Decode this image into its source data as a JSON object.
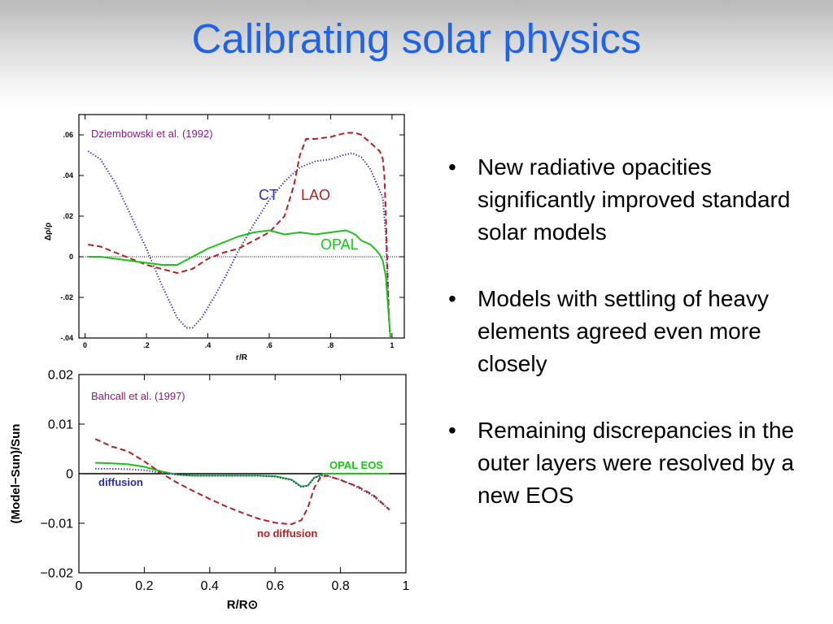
{
  "slide": {
    "title": "Calibrating solar physics",
    "bullets": [
      "New radiative opacities significantly improved standard solar models",
      "Models with settling of heavy elements agreed even more closely",
      "Remaining discrepancies in the outer layers were resolved by a new EOS"
    ],
    "bullet_glyph": "•"
  },
  "chart_data": [
    {
      "type": "line",
      "annotation": "Dziembowski et al. (1992)",
      "xlabel": "r/R",
      "ylabel": "Δρ/ρ",
      "xlim": [
        -0.02,
        1.04
      ],
      "ylim": [
        -0.04,
        0.07
      ],
      "xticks": [
        0,
        0.2,
        0.4,
        0.6,
        0.8,
        1
      ],
      "xtick_labels": [
        "0",
        ".2",
        ".4",
        ".6",
        ".8",
        "1"
      ],
      "yticks": [
        -0.04,
        -0.02,
        0,
        0.02,
        0.04,
        0.06
      ],
      "ytick_labels": [
        "-.04",
        "-.02",
        "0",
        ".02",
        ".04",
        ".06"
      ],
      "reference_line": 0,
      "series": [
        {
          "name": "CT",
          "color": "#2a2ab8",
          "style": "dotted",
          "x": [
            0.01,
            0.05,
            0.1,
            0.15,
            0.2,
            0.25,
            0.3,
            0.33,
            0.35,
            0.38,
            0.42,
            0.46,
            0.5,
            0.55,
            0.6,
            0.65,
            0.7,
            0.75,
            0.8,
            0.84,
            0.87,
            0.9,
            0.93,
            0.95,
            0.97,
            0.98,
            0.985,
            0.99,
            0.995
          ],
          "y": [
            0.052,
            0.048,
            0.036,
            0.02,
            0.004,
            -0.014,
            -0.03,
            -0.035,
            -0.035,
            -0.03,
            -0.02,
            -0.009,
            0.003,
            0.016,
            0.028,
            0.037,
            0.044,
            0.047,
            0.048,
            0.05,
            0.051,
            0.049,
            0.043,
            0.036,
            0.029,
            0.01,
            -0.01,
            -0.03,
            -0.04
          ]
        },
        {
          "name": "LAO",
          "color": "#b22222",
          "style": "dashed",
          "x": [
            0.01,
            0.05,
            0.1,
            0.15,
            0.2,
            0.25,
            0.3,
            0.35,
            0.4,
            0.45,
            0.5,
            0.55,
            0.6,
            0.65,
            0.68,
            0.7,
            0.72,
            0.75,
            0.8,
            0.85,
            0.88,
            0.9,
            0.93,
            0.96,
            0.97,
            0.975,
            0.98,
            0.985,
            0.99,
            0.995
          ],
          "y": [
            0.006,
            0.005,
            0.002,
            -0.001,
            -0.004,
            -0.006,
            -0.008,
            -0.006,
            -0.001,
            0.002,
            0.004,
            0.008,
            0.012,
            0.02,
            0.035,
            0.05,
            0.058,
            0.058,
            0.059,
            0.061,
            0.061,
            0.06,
            0.056,
            0.052,
            0.048,
            0.04,
            0.02,
            -0.005,
            -0.03,
            -0.04
          ]
        },
        {
          "name": "OPAL",
          "color": "#19c419",
          "style": "solid",
          "x": [
            0.01,
            0.05,
            0.1,
            0.15,
            0.2,
            0.25,
            0.3,
            0.35,
            0.4,
            0.45,
            0.5,
            0.55,
            0.6,
            0.65,
            0.7,
            0.75,
            0.8,
            0.85,
            0.88,
            0.9,
            0.93,
            0.95,
            0.96,
            0.97,
            0.98,
            0.985,
            0.99,
            0.995
          ],
          "y": [
            0.0,
            0.0,
            -0.001,
            -0.002,
            -0.003,
            -0.004,
            -0.004,
            0.0,
            0.004,
            0.007,
            0.01,
            0.012,
            0.013,
            0.011,
            0.012,
            0.011,
            0.012,
            0.013,
            0.011,
            0.008,
            0.006,
            0.003,
            0.001,
            -0.002,
            -0.01,
            -0.02,
            -0.03,
            -0.04
          ]
        }
      ]
    },
    {
      "type": "line",
      "annotation": "Bahcall et al. (1997)",
      "xlabel": "R/R⊙",
      "ylabel": "(Model−Sun)/Sun",
      "xlim": [
        0,
        1
      ],
      "ylim": [
        -0.02,
        0.02
      ],
      "xticks": [
        0,
        0.2,
        0.4,
        0.6,
        0.8,
        1
      ],
      "xtick_labels": [
        "0",
        "0.2",
        "0.4",
        "0.6",
        "0.8",
        "1"
      ],
      "yticks": [
        -0.02,
        -0.01,
        0,
        0.01,
        0.02
      ],
      "ytick_labels": [
        "−0.02",
        "−0.01",
        "0",
        "0.01",
        "0.02"
      ],
      "reference_line": 0,
      "series": [
        {
          "name": "OPAL EOS",
          "color": "#19c419",
          "style": "solid",
          "x": [
            0.05,
            0.1,
            0.15,
            0.2,
            0.25,
            0.3,
            0.35,
            0.4,
            0.45,
            0.5,
            0.55,
            0.6,
            0.65,
            0.68,
            0.7,
            0.72,
            0.75,
            0.8,
            0.85,
            0.9,
            0.95
          ],
          "y": [
            0.0022,
            0.0021,
            0.0019,
            0.0014,
            0.0005,
            -0.0002,
            -0.0004,
            -0.0004,
            -0.0004,
            -0.0004,
            -0.0004,
            -0.0005,
            -0.0012,
            -0.0026,
            -0.0024,
            -0.0008,
            0.0,
            0.0,
            0.0,
            0.0,
            0.0
          ]
        },
        {
          "name": "diffusion",
          "color": "#2a2ab8",
          "style": "dotted",
          "x": [
            0.05,
            0.1,
            0.15,
            0.2,
            0.25,
            0.3,
            0.35,
            0.4,
            0.45,
            0.5,
            0.55,
            0.6,
            0.65,
            0.68,
            0.7,
            0.72,
            0.75,
            0.8,
            0.85,
            0.9,
            0.95
          ],
          "y": [
            0.001,
            0.001,
            0.0009,
            0.0007,
            0.0002,
            -0.0002,
            -0.0004,
            -0.0004,
            -0.0004,
            -0.0004,
            -0.0004,
            -0.0006,
            -0.0013,
            -0.0027,
            -0.0024,
            -0.0008,
            -0.0003,
            -0.0012,
            -0.0027,
            -0.0045,
            -0.0073
          ]
        },
        {
          "name": "no diffusion",
          "color": "#b22222",
          "style": "dashed",
          "x": [
            0.05,
            0.1,
            0.15,
            0.2,
            0.25,
            0.3,
            0.35,
            0.4,
            0.45,
            0.5,
            0.55,
            0.6,
            0.65,
            0.68,
            0.7,
            0.72,
            0.74,
            0.76,
            0.8,
            0.85,
            0.9,
            0.95
          ],
          "y": [
            0.007,
            0.0055,
            0.0045,
            0.0025,
            0.0002,
            -0.0018,
            -0.0035,
            -0.0051,
            -0.0066,
            -0.0079,
            -0.0091,
            -0.0099,
            -0.0102,
            -0.0094,
            -0.0069,
            -0.0028,
            -0.0006,
            -0.0004,
            -0.0013,
            -0.0025,
            -0.0043,
            -0.0073
          ]
        }
      ]
    }
  ]
}
